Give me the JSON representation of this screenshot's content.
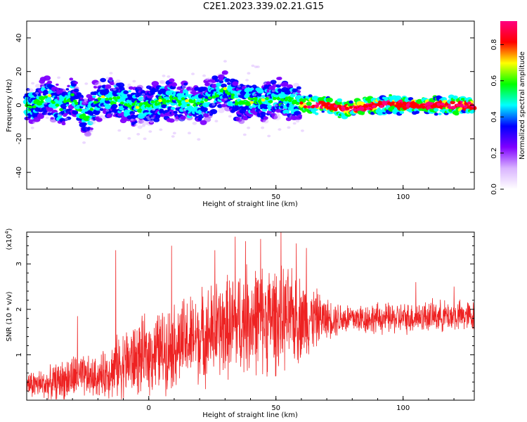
{
  "title": "C2E1.2023.339.02.21.G15",
  "chart_data": [
    {
      "type": "heatmap",
      "xlabel": "Height of straight line (km)",
      "ylabel": "Frequency (Hz)",
      "xlim": [
        -48,
        128
      ],
      "ylim": [
        -50,
        50
      ],
      "xticks": [
        0,
        50,
        100
      ],
      "yticks": [
        -40,
        -20,
        0,
        20,
        40
      ],
      "colorbar": {
        "label": "Normalized spectral amplitude",
        "range": [
          0,
          0.93
        ],
        "ticks": [
          0.0,
          0.2,
          0.4,
          0.6,
          0.8
        ],
        "colors": [
          "#ffffff",
          "#d9b3ff",
          "#7f00ff",
          "#0000ff",
          "#00ffff",
          "#00ff00",
          "#ffff00",
          "#ff0000",
          "#ff0080"
        ]
      },
      "ridge": [
        {
          "x": -45,
          "y": 0
        },
        {
          "x": -40,
          "y": 6
        },
        {
          "x": -35,
          "y": -2
        },
        {
          "x": -30,
          "y": 5
        },
        {
          "x": -25,
          "y": -8
        },
        {
          "x": -20,
          "y": 3
        },
        {
          "x": -15,
          "y": 5
        },
        {
          "x": -10,
          "y": 2
        },
        {
          "x": -5,
          "y": -1
        },
        {
          "x": 0,
          "y": 0
        },
        {
          "x": 5,
          "y": 2
        },
        {
          "x": 10,
          "y": 3
        },
        {
          "x": 15,
          "y": 2
        },
        {
          "x": 20,
          "y": 0
        },
        {
          "x": 25,
          "y": 4
        },
        {
          "x": 30,
          "y": 10
        },
        {
          "x": 35,
          "y": 1
        },
        {
          "x": 40,
          "y": 3
        },
        {
          "x": 45,
          "y": 2
        },
        {
          "x": 50,
          "y": 4
        },
        {
          "x": 55,
          "y": 3
        },
        {
          "x": 60,
          "y": 0
        },
        {
          "x": 65,
          "y": 0.5
        },
        {
          "x": 70,
          "y": 0
        },
        {
          "x": 75,
          "y": -2
        },
        {
          "x": 80,
          "y": -2
        },
        {
          "x": 85,
          "y": -1
        },
        {
          "x": 90,
          "y": 0
        },
        {
          "x": 95,
          "y": 1
        },
        {
          "x": 100,
          "y": 0
        },
        {
          "x": 105,
          "y": 0
        },
        {
          "x": 110,
          "y": 0
        },
        {
          "x": 115,
          "y": 0
        },
        {
          "x": 120,
          "y": 0
        },
        {
          "x": 125,
          "y": 0
        },
        {
          "x": 128,
          "y": 0
        }
      ]
    },
    {
      "type": "line",
      "xlabel": "Height of straight line (km)",
      "ylabel": "SNR (10 * v/v)",
      "yscale_label": "(x10",
      "yscale_exp": "4",
      "yscale_close": ")",
      "xlim": [
        -48,
        128
      ],
      "ylim": [
        0,
        3.7
      ],
      "xticks": [
        0,
        50,
        100
      ],
      "yticks": [
        1,
        2,
        3
      ],
      "color": "#ee2222",
      "envelope": [
        {
          "x": -48,
          "mean": 0.35,
          "amp": 0.35
        },
        {
          "x": -40,
          "mean": 0.35,
          "amp": 0.4
        },
        {
          "x": -30,
          "mean": 0.5,
          "amp": 0.6
        },
        {
          "x": -20,
          "mean": 0.5,
          "amp": 0.5
        },
        {
          "x": -10,
          "mean": 0.8,
          "amp": 0.9
        },
        {
          "x": 0,
          "mean": 1.0,
          "amp": 1.0
        },
        {
          "x": 10,
          "mean": 1.2,
          "amp": 1.1
        },
        {
          "x": 20,
          "mean": 1.4,
          "amp": 1.2
        },
        {
          "x": 30,
          "mean": 1.6,
          "amp": 1.3
        },
        {
          "x": 40,
          "mean": 1.8,
          "amp": 1.4
        },
        {
          "x": 50,
          "mean": 1.8,
          "amp": 1.4
        },
        {
          "x": 60,
          "mean": 1.8,
          "amp": 1.1
        },
        {
          "x": 70,
          "mean": 1.8,
          "amp": 0.5
        },
        {
          "x": 80,
          "mean": 1.8,
          "amp": 0.4
        },
        {
          "x": 90,
          "mean": 1.8,
          "amp": 0.4
        },
        {
          "x": 100,
          "mean": 1.8,
          "amp": 0.4
        },
        {
          "x": 110,
          "mean": 1.85,
          "amp": 0.4
        },
        {
          "x": 120,
          "mean": 1.85,
          "amp": 0.4
        },
        {
          "x": 128,
          "mean": 1.85,
          "amp": 0.4
        }
      ],
      "spikes": [
        {
          "x": -28,
          "y": 1.85
        },
        {
          "x": -13,
          "y": 3.3
        },
        {
          "x": 9,
          "y": 3.4
        },
        {
          "x": 26,
          "y": 3.3
        },
        {
          "x": 34,
          "y": 3.6
        },
        {
          "x": 38,
          "y": 3.5
        },
        {
          "x": 44,
          "y": 3.55
        },
        {
          "x": 52,
          "y": 3.7
        },
        {
          "x": 58,
          "y": 3.45
        },
        {
          "x": 62,
          "y": 3.35
        },
        {
          "x": 105,
          "y": 2.6
        },
        {
          "x": 120,
          "y": 2.5
        }
      ]
    }
  ]
}
